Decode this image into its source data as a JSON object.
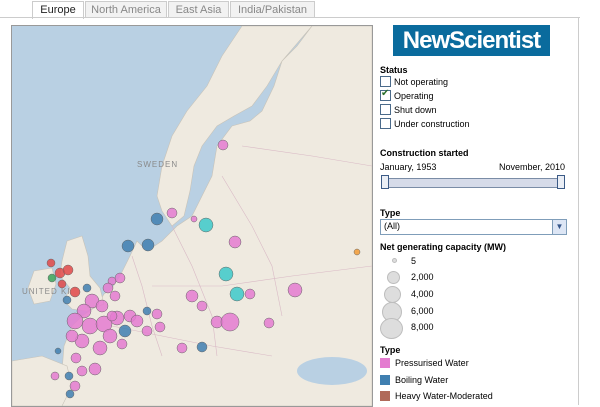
{
  "tabs": [
    {
      "label": "Europe",
      "active": true
    },
    {
      "label": "North America",
      "active": false
    },
    {
      "label": "East Asia",
      "active": false
    },
    {
      "label": "India/Pakistan",
      "active": false
    }
  ],
  "brand": "NewScientist",
  "map": {
    "labels": {
      "sweden": "SWEDEN",
      "uk": "UNITED KI"
    }
  },
  "status": {
    "title": "Status",
    "options": [
      {
        "label": "Not operating",
        "checked": false
      },
      {
        "label": "Operating",
        "checked": true
      },
      {
        "label": "Shut down",
        "checked": false
      },
      {
        "label": "Under construction",
        "checked": false
      }
    ]
  },
  "construction": {
    "title": "Construction started",
    "start": "January, 1953",
    "end": "November, 2010"
  },
  "type_filter": {
    "title": "Type",
    "selected": "(All)"
  },
  "capacity": {
    "title": "Net generating capacity (MW)",
    "values": [
      "5",
      "2,000",
      "4,000",
      "6,000",
      "8,000"
    ]
  },
  "type_legend": {
    "title": "Type",
    "items": [
      {
        "label": "Pressurised Water",
        "color": "#e47bd0"
      },
      {
        "label": "Boiling Water",
        "color": "#3f7fb0"
      },
      {
        "label": "Heavy Water-Moderated",
        "color": "#b06a5a"
      }
    ]
  },
  "colors": {
    "pwr": "#e47bd0",
    "bwr": "#3f7fb0",
    "phwr": "#b06a5a",
    "teal": "#3cc9c9",
    "red": "#e04848",
    "green": "#3aa35a",
    "orange": "#f29b35"
  }
}
